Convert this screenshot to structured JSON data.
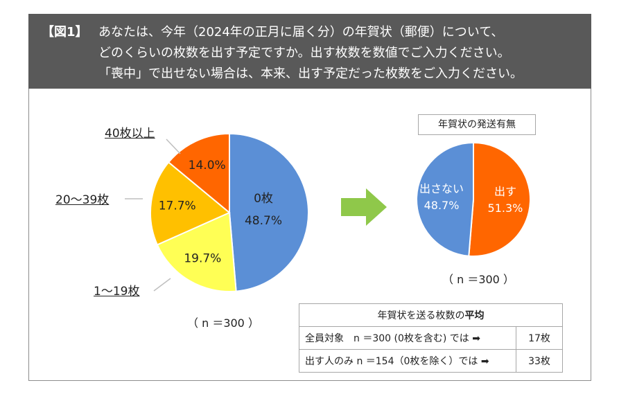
{
  "header": {
    "tag": "【図1】",
    "line1": "あなたは、今年（2024年の正月に届く分）の年賀状（郵便）について、",
    "line2": "どのくらいの枚数を出す予定ですか。出す枚数を数値でご入力ください。",
    "line3": "「喪中」で出せない場合は、本来、出す予定だった枚数をご入力ください。"
  },
  "chart_data": [
    {
      "type": "pie",
      "slices": [
        {
          "label": "0枚",
          "value": 48.7,
          "value_label": "48.7%",
          "color": "#5b8fd6"
        },
        {
          "label": "1〜19枚",
          "value": 19.7,
          "value_label": "19.7%",
          "color": "#ffff55"
        },
        {
          "label": "20〜39枚",
          "value": 17.7,
          "value_label": "17.7%",
          "color": "#ffc000"
        },
        {
          "label": "40枚以上",
          "value": 14.0,
          "value_label": "14.0%",
          "color": "#ff6600"
        }
      ],
      "note": "（ n ＝300 ）"
    },
    {
      "type": "pie",
      "title": "年賀状の発送有無",
      "slices": [
        {
          "label": "出す",
          "value": 51.3,
          "value_label": "51.3%",
          "color": "#ff6600"
        },
        {
          "label": "出さない",
          "value": 48.7,
          "value_label": "48.7%",
          "color": "#5b8fd6"
        }
      ],
      "note": "（ n ＝300 ）"
    }
  ],
  "table": {
    "title_prefix": "年賀状を送る枚数の",
    "title_bold": "平均",
    "rows": [
      {
        "label": "全員対象　n ＝300 (0枚を含む) では ➡",
        "value": "17枚"
      },
      {
        "label": "出す人のみ n ＝154（0枚を除く）では ➡",
        "value": "33枚"
      }
    ]
  },
  "colors": {
    "header_bg": "#595959",
    "arrow": "#8fc84a",
    "border": "#8c8c8c"
  }
}
